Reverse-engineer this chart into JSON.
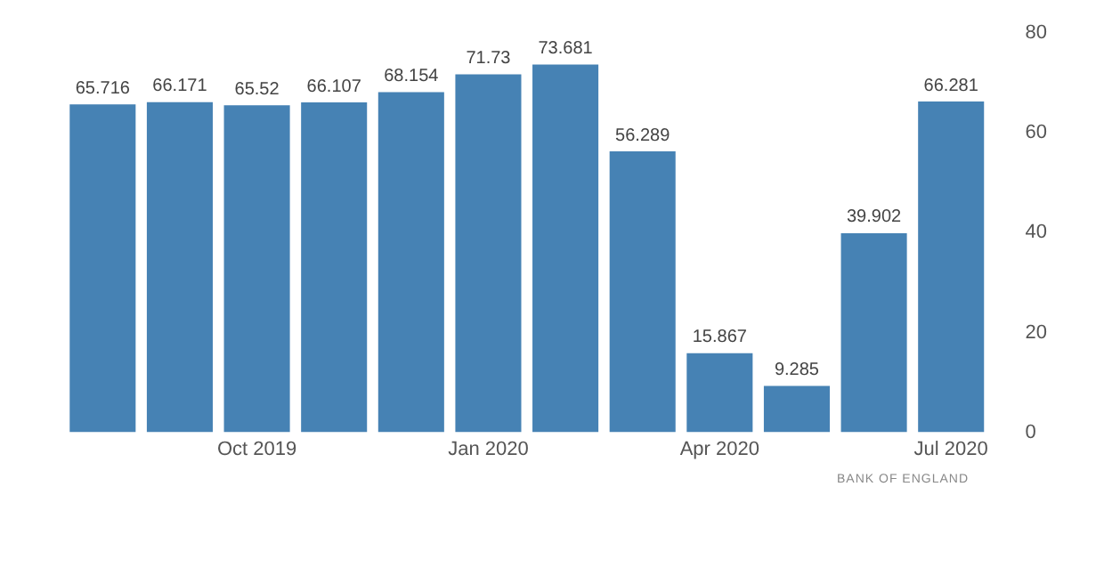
{
  "chart_data": {
    "type": "bar",
    "categories": [
      null,
      null,
      "Oct 2019",
      null,
      null,
      "Jan 2020",
      null,
      null,
      "Apr 2020",
      null,
      null,
      "Jul 2020"
    ],
    "values": [
      65.716,
      66.171,
      65.52,
      66.107,
      68.154,
      71.73,
      73.681,
      56.289,
      15.867,
      9.285,
      39.902,
      66.281
    ],
    "color": "#4682b4",
    "ylim": [
      0,
      80
    ],
    "yticks": [
      0,
      20,
      40,
      60,
      80
    ],
    "grid": false,
    "legend": false,
    "data_labels": true,
    "annotations": [
      "BANK OF ENGLAND"
    ]
  }
}
